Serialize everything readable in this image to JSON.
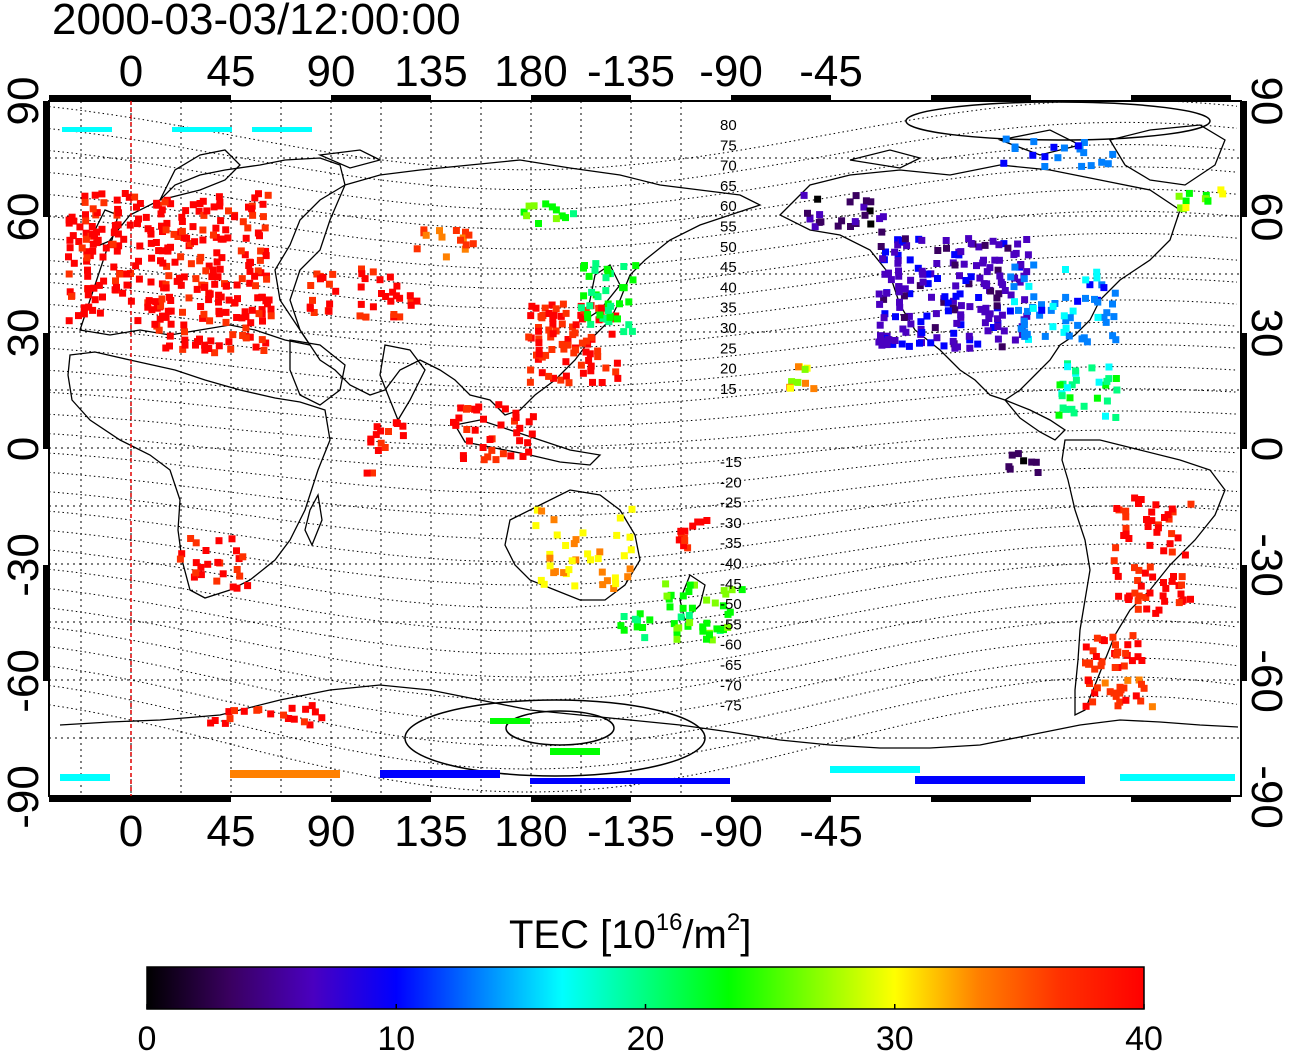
{
  "title": "2000-03-03/12:00:00",
  "map": {
    "lon_ticks_top": [
      "0",
      "45",
      "90",
      "135",
      "180",
      "-135",
      "-90",
      "-45"
    ],
    "lon_ticks_bottom": [
      "0",
      "45",
      "90",
      "135",
      "180",
      "-135",
      "-90",
      "-45"
    ],
    "lat_ticks_left": [
      "90",
      "60",
      "30",
      "0",
      "-30",
      "-60",
      "-90"
    ],
    "lat_ticks_right": [
      "90",
      "60",
      "30",
      "0",
      "-30",
      "-60",
      "-90"
    ],
    "contour_labels_north": [
      "80",
      "75",
      "70",
      "65",
      "60",
      "55",
      "50",
      "45",
      "40",
      "35",
      "30",
      "25",
      "20",
      "15"
    ],
    "contour_labels_south": [
      "-15",
      "-20",
      "-25",
      "-30",
      "-35",
      "-40",
      "-45",
      "-50",
      "-55",
      "-60",
      "-65",
      "-70",
      "-75"
    ],
    "colors": {
      "meridian_line": "#e00000",
      "gridline": "#000000",
      "coastline": "#000000"
    }
  },
  "colorbar": {
    "label_main": "TEC  [10",
    "label_sup1": "16",
    "label_mid": "/m",
    "label_sup2": "2",
    "label_end": "]",
    "ticks": [
      "0",
      "10",
      "20",
      "30",
      "40"
    ],
    "min": 0,
    "max": 40,
    "colormap": [
      "#000000",
      "#3a0060",
      "#4a00c0",
      "#0000ff",
      "#0080ff",
      "#00ffff",
      "#00ff80",
      "#00ff00",
      "#80ff00",
      "#ffff00",
      "#ff8000",
      "#ff3000",
      "#ff0000"
    ]
  }
}
